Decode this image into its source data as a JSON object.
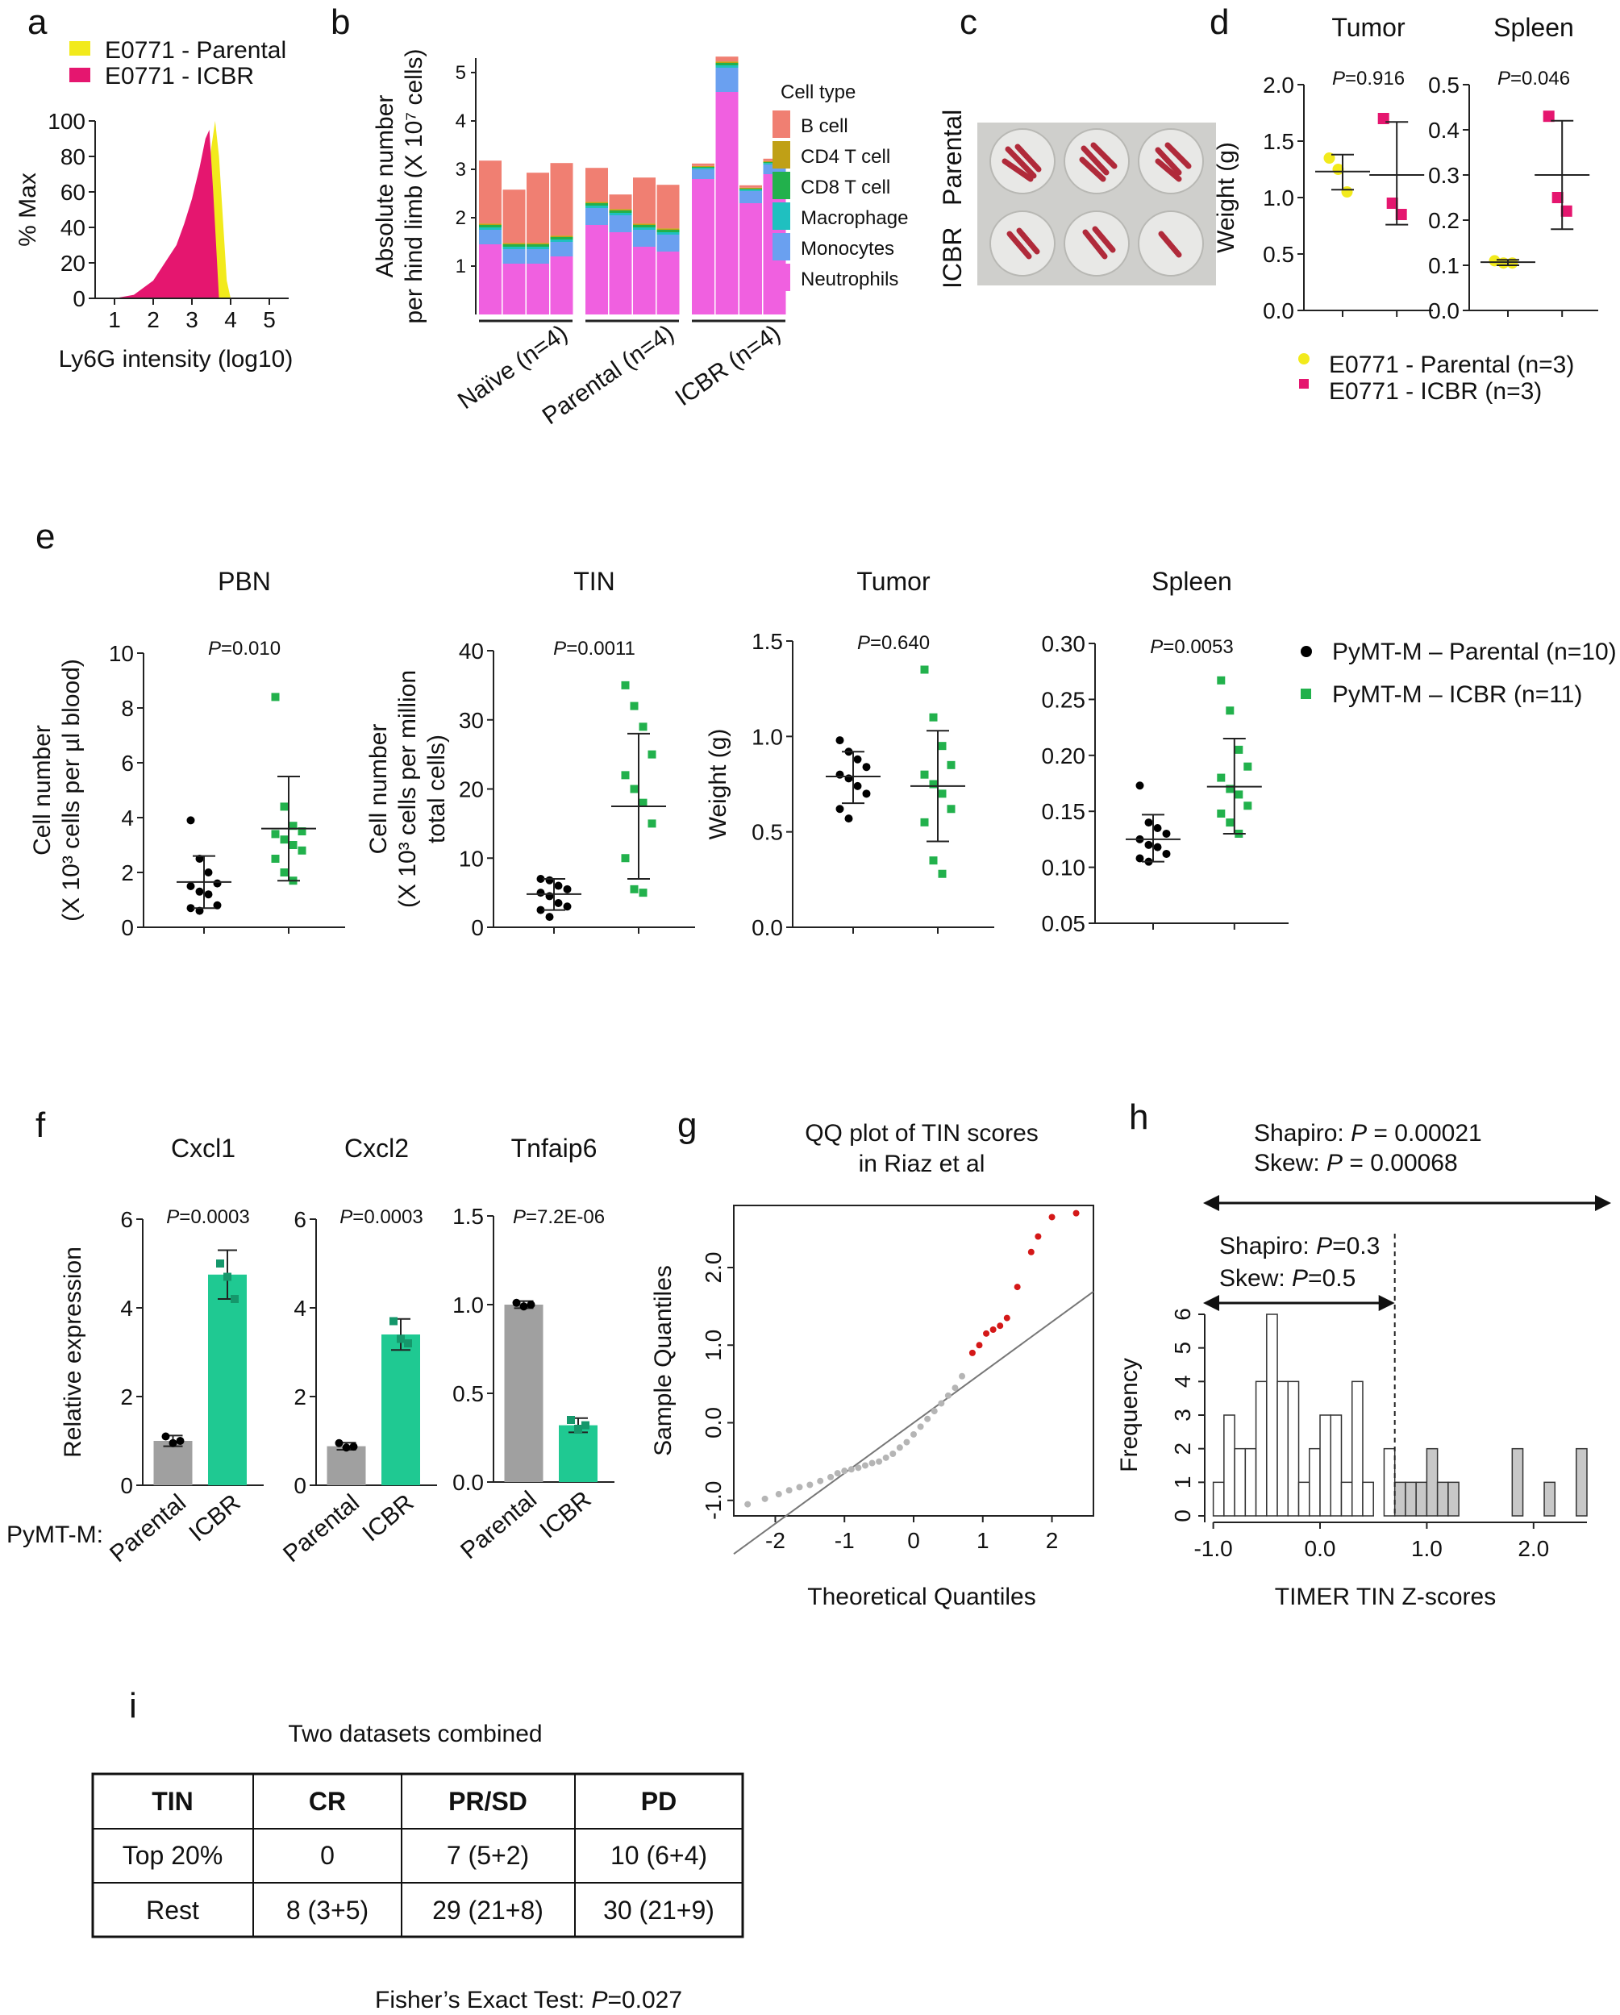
{
  "colors": {
    "yellow": "#f2ea1c",
    "pink": "#e5166f",
    "magenta": "#f060e0",
    "salmon": "#f07f72",
    "olive": "#c0a016",
    "green": "#22b14c",
    "teal": "#1fc0c0",
    "blue": "#6aa0f0",
    "gray": "#a0a0a0",
    "teal_bar": "#1fc992",
    "red_pt": "#d41818",
    "lightgray_pt": "#b5b5b5"
  },
  "panel_letters": {
    "a": "a",
    "b": "b",
    "c": "c",
    "d": "d",
    "e": "e",
    "f": "f",
    "g": "g",
    "h": "h",
    "i": "i"
  },
  "chart_data": [
    {
      "id": "a",
      "type": "area",
      "legend": [
        "E0771 - Parental",
        "E0771 - ICBR"
      ],
      "xlabel": "Ly6G intensity (log10)",
      "ylabel": "% Max",
      "xlim": [
        0.5,
        5.5
      ],
      "ylim": [
        0,
        100
      ],
      "xticks": [
        "1",
        "2",
        "3",
        "4",
        "5"
      ],
      "yticks": [
        "0",
        "20",
        "40",
        "60",
        "80",
        "100"
      ],
      "series": [
        {
          "name": "E0771 - Parental",
          "color_key": "yellow",
          "x": [
            2.9,
            3.1,
            3.3,
            3.5,
            3.6,
            3.7,
            3.8,
            3.9,
            4.0
          ],
          "y": [
            0,
            15,
            45,
            85,
            100,
            80,
            45,
            10,
            0
          ]
        },
        {
          "name": "E0771 - ICBR",
          "color_key": "pink",
          "x": [
            1.0,
            1.5,
            2.0,
            2.3,
            2.6,
            2.8,
            3.0,
            3.2,
            3.35,
            3.45,
            3.55,
            3.7
          ],
          "y": [
            0,
            2,
            10,
            20,
            30,
            42,
            56,
            74,
            90,
            95,
            60,
            0
          ]
        }
      ]
    },
    {
      "id": "b",
      "type": "bar",
      "stacked": true,
      "ylabel": "Absolute number\nper hind limb (X 10⁷ cells)",
      "ylim": [
        0,
        5.3
      ],
      "yticks": [
        "1",
        "2",
        "3",
        "4",
        "5"
      ],
      "group_labels": [
        "Naïve (n=4)",
        "Parental (n=4)",
        "ICBR (n=4)"
      ],
      "legend_title": "Cell type",
      "series_names": [
        "Neutrophils",
        "Monocytes",
        "Macrophage",
        "CD8 T cell",
        "CD4 T cell",
        "B cell"
      ],
      "series_color_keys": [
        "magenta",
        "blue",
        "teal",
        "green",
        "olive",
        "salmon"
      ],
      "legend_order": [
        "B cell",
        "CD4 T cell",
        "CD8 T cell",
        "Macrophage",
        "Monocytes",
        "Neutrophils"
      ],
      "legend_color_keys": [
        "salmon",
        "olive",
        "green",
        "teal",
        "blue",
        "magenta"
      ],
      "bars": [
        [
          1.45,
          0.3,
          0.05,
          0.05,
          0.03,
          1.3
        ],
        [
          1.05,
          0.3,
          0.05,
          0.05,
          0.03,
          1.1
        ],
        [
          1.05,
          0.3,
          0.05,
          0.05,
          0.03,
          1.45
        ],
        [
          1.2,
          0.3,
          0.05,
          0.05,
          0.03,
          1.5
        ],
        [
          1.85,
          0.35,
          0.05,
          0.05,
          0.03,
          0.7
        ],
        [
          1.7,
          0.35,
          0.05,
          0.05,
          0.03,
          0.3
        ],
        [
          1.4,
          0.35,
          0.05,
          0.05,
          0.03,
          0.95
        ],
        [
          1.3,
          0.35,
          0.05,
          0.05,
          0.03,
          0.9
        ],
        [
          2.8,
          0.2,
          0.03,
          0.02,
          0.02,
          0.05
        ],
        [
          4.6,
          0.5,
          0.05,
          0.05,
          0.03,
          0.1
        ],
        [
          2.3,
          0.25,
          0.03,
          0.02,
          0.02,
          0.05
        ],
        [
          2.9,
          0.2,
          0.03,
          0.02,
          0.02,
          0.05
        ]
      ]
    },
    {
      "id": "d_tumor",
      "type": "scatter",
      "title": "Tumor",
      "ylabel": "Weight (g)",
      "ylim": [
        0,
        2.0
      ],
      "yticks": [
        "0.0",
        "0.5",
        "1.0",
        "1.5",
        "2.0"
      ],
      "pvalue": "P=0.916",
      "groups": [
        {
          "name": "E0771 - Parental (n=3)",
          "color_key": "yellow",
          "marker": "circle",
          "values": [
            1.35,
            1.25,
            1.05
          ],
          "mean": 1.23,
          "sd_low": 1.07,
          "sd_high": 1.38
        },
        {
          "name": "E0771 - ICBR (n=3)",
          "color_key": "pink",
          "marker": "square",
          "values": [
            1.7,
            0.95,
            0.85
          ],
          "mean": 1.2,
          "sd_low": 0.76,
          "sd_high": 1.67
        }
      ]
    },
    {
      "id": "d_spleen",
      "type": "scatter",
      "title": "Spleen",
      "ylim": [
        0,
        0.5
      ],
      "yticks": [
        "0.0",
        "0.1",
        "0.2",
        "0.3",
        "0.4",
        "0.5"
      ],
      "pvalue": "P=0.046",
      "groups": [
        {
          "name": "E0771 - Parental (n=3)",
          "color_key": "yellow",
          "marker": "circle",
          "values": [
            0.11,
            0.105,
            0.105
          ],
          "mean": 0.107,
          "sd_low": 0.1,
          "sd_high": 0.112
        },
        {
          "name": "E0771 - ICBR (n=3)",
          "color_key": "pink",
          "marker": "square",
          "values": [
            0.43,
            0.25,
            0.22
          ],
          "mean": 0.3,
          "sd_low": 0.18,
          "sd_high": 0.42
        }
      ]
    },
    {
      "id": "e_pbn",
      "type": "scatter",
      "title": "PBN",
      "ylabel": "Cell number\n(X 10³ cells per µl blood)",
      "ylim": [
        0,
        10
      ],
      "yticks": [
        "0",
        "2",
        "4",
        "6",
        "8",
        "10"
      ],
      "pvalue": "P=0.010",
      "groups": [
        {
          "name": "PyMT-M – Parental (n=10)",
          "color_key": "black",
          "marker": "circle",
          "values": [
            3.9,
            2.5,
            2.0,
            1.6,
            1.5,
            1.3,
            1.2,
            0.8,
            0.7,
            0.6
          ],
          "mean": 1.65,
          "sd_low": 0.7,
          "sd_high": 2.6
        },
        {
          "name": "PyMT-M – ICBR (n=11)",
          "color_key": "green",
          "marker": "square",
          "values": [
            8.4,
            4.4,
            3.7,
            3.5,
            3.4,
            3.2,
            3.0,
            2.8,
            2.5,
            2.0,
            1.7
          ],
          "mean": 3.6,
          "sd_low": 1.7,
          "sd_high": 5.5
        }
      ]
    },
    {
      "id": "e_tin",
      "type": "scatter",
      "title": "TIN",
      "ylabel": "Cell number\n(X 10³ cells per million\ntotal cells)",
      "ylim": [
        0,
        40
      ],
      "yticks": [
        "0",
        "10",
        "20",
        "30",
        "40"
      ],
      "pvalue": "P=0.0011",
      "groups": [
        {
          "name": "PyMT-M – Parental (n=10)",
          "color_key": "black",
          "marker": "circle",
          "values": [
            7.0,
            6.8,
            6.0,
            5.5,
            5.0,
            4.5,
            3.5,
            3.0,
            2.5,
            1.5
          ],
          "mean": 4.8,
          "sd_low": 2.5,
          "sd_high": 7.0
        },
        {
          "name": "PyMT-M – ICBR (n=11)",
          "color_key": "green",
          "marker": "square",
          "values": [
            35,
            32,
            29,
            25,
            22,
            20,
            18,
            15,
            10,
            5.5,
            5.0
          ],
          "mean": 17.5,
          "sd_low": 7.0,
          "sd_high": 28
        }
      ]
    },
    {
      "id": "e_tumor",
      "type": "scatter",
      "title": "Tumor",
      "ylabel": "Weight (g)",
      "ylim": [
        0,
        1.5
      ],
      "yticks": [
        "0.0",
        "0.5",
        "1.0",
        "1.5"
      ],
      "pvalue": "P=0.640",
      "groups": [
        {
          "name": "PyMT-M – Parental (n=10)",
          "color_key": "black",
          "marker": "circle",
          "values": [
            0.98,
            0.92,
            0.88,
            0.84,
            0.8,
            0.78,
            0.74,
            0.7,
            0.62,
            0.57
          ],
          "mean": 0.79,
          "sd_low": 0.65,
          "sd_high": 0.92
        },
        {
          "name": "PyMT-M – ICBR (n=11)",
          "color_key": "green",
          "marker": "square",
          "values": [
            1.35,
            1.1,
            0.95,
            0.85,
            0.8,
            0.75,
            0.7,
            0.62,
            0.55,
            0.35,
            0.28
          ],
          "mean": 0.74,
          "sd_low": 0.45,
          "sd_high": 1.03
        }
      ]
    },
    {
      "id": "e_spleen",
      "type": "scatter",
      "title": "Spleen",
      "ylim": [
        0.05,
        0.3
      ],
      "yticks": [
        "0.05",
        "0.10",
        "0.15",
        "0.20",
        "0.25",
        "0.30"
      ],
      "pvalue": "P=0.0053",
      "groups": [
        {
          "name": "PyMT-M – Parental (n=10)",
          "color_key": "black",
          "marker": "circle",
          "values": [
            0.173,
            0.14,
            0.135,
            0.13,
            0.125,
            0.12,
            0.118,
            0.112,
            0.108,
            0.105
          ],
          "mean": 0.125,
          "sd_low": 0.105,
          "sd_high": 0.147
        },
        {
          "name": "PyMT-M – ICBR (n=11)",
          "color_key": "green",
          "marker": "square",
          "values": [
            0.267,
            0.24,
            0.205,
            0.19,
            0.18,
            0.17,
            0.165,
            0.155,
            0.148,
            0.14,
            0.13
          ],
          "mean": 0.172,
          "sd_low": 0.13,
          "sd_high": 0.215
        }
      ]
    },
    {
      "id": "f_cxcl1",
      "type": "bar",
      "title": "Cxcl1",
      "ylabel": "Relative expression",
      "ylim": [
        0,
        6
      ],
      "yticks": [
        "0",
        "2",
        "4",
        "6"
      ],
      "pvalue": "P=0.0003",
      "categories": [
        "Parental",
        "ICBR"
      ],
      "values": [
        1.0,
        4.75
      ],
      "sd": [
        0.12,
        0.55
      ],
      "points": [
        [
          1.1,
          0.95,
          1.0
        ],
        [
          5.0,
          4.7,
          4.2
        ]
      ]
    },
    {
      "id": "f_cxcl2",
      "type": "bar",
      "title": "Cxcl2",
      "ylim": [
        0,
        6
      ],
      "yticks": [
        "0",
        "2",
        "4",
        "6"
      ],
      "pvalue": "P=0.0003",
      "categories": [
        "Parental",
        "ICBR"
      ],
      "values": [
        0.88,
        3.4
      ],
      "sd": [
        0.08,
        0.35
      ],
      "points": [
        [
          0.95,
          0.85,
          0.87
        ],
        [
          3.7,
          3.3,
          3.2
        ]
      ]
    },
    {
      "id": "f_tnfaip6",
      "type": "bar",
      "title": "Tnfaip6",
      "ylim": [
        0,
        1.5
      ],
      "yticks": [
        "0.0",
        "0.5",
        "1.0",
        "1.5"
      ],
      "pvalue": "P=7.2E-06",
      "categories": [
        "Parental",
        "ICBR"
      ],
      "values": [
        1.0,
        0.32
      ],
      "sd": [
        0.02,
        0.04
      ],
      "points": [
        [
          1.01,
          0.99,
          1.0
        ],
        [
          0.35,
          0.3,
          0.32
        ]
      ]
    },
    {
      "id": "g",
      "type": "scatter",
      "title": "QQ plot of TIN scores\nin Riaz et al",
      "xlabel": "Theoretical Quantiles",
      "ylabel": "Sample Quantiles",
      "xlim": [
        -2.6,
        2.6
      ],
      "ylim": [
        -1.2,
        2.8
      ],
      "xticks": [
        "-2",
        "-1",
        "0",
        "1",
        "2"
      ],
      "yticks": [
        "-1.0",
        "0.0",
        "1.0",
        "2.0"
      ],
      "reference_line": {
        "slope": 0.65,
        "intercept": 0.0
      },
      "points_gray": [
        [
          -2.4,
          -1.05
        ],
        [
          -2.15,
          -0.98
        ],
        [
          -1.95,
          -0.92
        ],
        [
          -1.8,
          -0.87
        ],
        [
          -1.65,
          -0.83
        ],
        [
          -1.5,
          -0.8
        ],
        [
          -1.35,
          -0.75
        ],
        [
          -1.2,
          -0.7
        ],
        [
          -1.1,
          -0.65
        ],
        [
          -1.0,
          -0.62
        ],
        [
          -0.9,
          -0.6
        ],
        [
          -0.8,
          -0.58
        ],
        [
          -0.7,
          -0.55
        ],
        [
          -0.6,
          -0.52
        ],
        [
          -0.5,
          -0.5
        ],
        [
          -0.4,
          -0.45
        ],
        [
          -0.3,
          -0.4
        ],
        [
          -0.2,
          -0.32
        ],
        [
          -0.1,
          -0.25
        ],
        [
          0.0,
          -0.15
        ],
        [
          0.1,
          -0.05
        ],
        [
          0.2,
          0.05
        ],
        [
          0.3,
          0.15
        ],
        [
          0.4,
          0.25
        ],
        [
          0.5,
          0.35
        ],
        [
          0.6,
          0.45
        ],
        [
          0.7,
          0.6
        ]
      ],
      "points_red": [
        [
          0.85,
          0.9
        ],
        [
          0.95,
          1.0
        ],
        [
          1.05,
          1.15
        ],
        [
          1.15,
          1.2
        ],
        [
          1.25,
          1.25
        ],
        [
          1.35,
          1.35
        ],
        [
          1.5,
          1.75
        ],
        [
          1.7,
          2.2
        ],
        [
          1.8,
          2.4
        ],
        [
          2.0,
          2.65
        ],
        [
          2.35,
          2.7
        ]
      ]
    },
    {
      "id": "h",
      "type": "bar",
      "histogram": true,
      "xlabel": "TIMER TIN Z-scores",
      "ylabel": "Frequency",
      "xlim": [
        -1.05,
        2.5
      ],
      "ylim": [
        0,
        6
      ],
      "xticks": [
        "-1.0",
        "0.0",
        "1.0",
        "2.0"
      ],
      "yticks": [
        "0",
        "1",
        "2",
        "3",
        "4",
        "5",
        "6"
      ],
      "bin_start": -1.0,
      "bin_width": 0.1,
      "threshold": 0.7,
      "values": [
        1,
        3,
        2,
        2,
        4,
        6,
        4,
        4,
        1,
        2,
        3,
        3,
        1,
        4,
        1,
        0,
        2,
        1,
        1,
        1,
        2,
        1,
        1,
        0,
        0,
        0,
        0,
        0,
        2,
        0,
        0,
        1,
        0,
        0,
        2
      ],
      "annotations": {
        "outer": [
          "Shapiro: P = 0.00021",
          "Skew: P = 0.00068"
        ],
        "inner": [
          "Shapiro: P=0.3",
          "Skew: P=0.5"
        ]
      }
    }
  ],
  "panel_a": {
    "legend": [
      "E0771 - Parental",
      "E0771 - ICBR"
    ]
  },
  "panel_c": {
    "labels": [
      "ICBR",
      "Parental"
    ]
  },
  "panel_d": {
    "legend": [
      "E0771 - Parental (n=3)",
      "E0771 - ICBR (n=3)"
    ]
  },
  "panel_e": {
    "legend": [
      "PyMT-M – Parental (n=10)",
      "PyMT-M – ICBR (n=11)"
    ]
  },
  "panel_f": {
    "row_label": "PyMT-M:"
  },
  "panel_h_text": {
    "outer1": "Shapiro: ",
    "outer1p": "P",
    "outer1v": " = 0.00021",
    "outer2": "Skew: ",
    "outer2p": "P",
    "outer2v": " = 0.00068",
    "inner1": "Shapiro: ",
    "inner1p": "P",
    "inner1v": "=0.3",
    "inner2": "Skew: ",
    "inner2p": "P",
    "inner2v": "=0.5"
  },
  "panel_i": {
    "title": "Two datasets combined",
    "headers": [
      "TIN",
      "CR",
      "PR/SD",
      "PD"
    ],
    "rows": [
      [
        "Top 20%",
        "0",
        "7 (5+2)",
        "10 (6+4)"
      ],
      [
        "Rest",
        "8 (3+5)",
        "29 (21+8)",
        "30 (21+9)"
      ]
    ],
    "footer_prefix": "Fisher’s Exact Test: ",
    "footer_p": "P",
    "footer_value": "=0.027"
  }
}
